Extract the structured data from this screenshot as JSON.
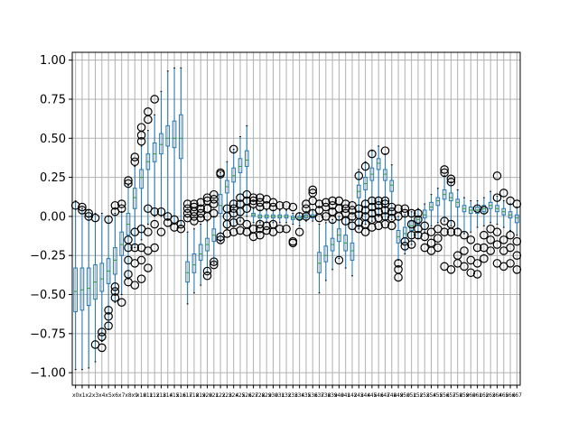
{
  "chart_data": {
    "type": "box",
    "title": "",
    "xlabel": "",
    "ylabel": "",
    "ylim": [
      -1.08,
      1.05
    ],
    "y_ticks": [
      -1.0,
      -0.75,
      -0.5,
      -0.25,
      0.0,
      0.25,
      0.5,
      0.75,
      1.0
    ],
    "y_tick_labels": [
      "−1.00",
      "−0.75",
      "−0.50",
      "−0.25",
      "0.00",
      "0.25",
      "0.50",
      "0.75",
      "1.00"
    ],
    "grid": true,
    "box_color": "#1f77b4",
    "median_color": "#2ca02c",
    "flier_color": "#000000",
    "categories": [
      "x0",
      "x1",
      "x2",
      "x3",
      "x4",
      "x5",
      "x6",
      "x7",
      "x8",
      "x9",
      "x10",
      "x11",
      "x12",
      "x13",
      "x14",
      "x15",
      "x16",
      "x17",
      "x18",
      "x19",
      "x20",
      "x21",
      "x22",
      "x23",
      "x24",
      "x25",
      "x26",
      "x27",
      "x28",
      "x29",
      "x30",
      "x31",
      "x32",
      "x33",
      "x34",
      "x35",
      "x36",
      "x37",
      "x38",
      "x39",
      "x40",
      "x41",
      "x42",
      "x43",
      "x44",
      "x45",
      "x46",
      "x47",
      "x48",
      "x49",
      "x50",
      "x51",
      "x52",
      "x53",
      "x54",
      "x55",
      "x56",
      "x57",
      "x58",
      "x59",
      "x60",
      "x61",
      "x62",
      "x63",
      "x64",
      "x65",
      "x66",
      "x67"
    ],
    "boxes": [
      {
        "whislo": -0.98,
        "q1": -0.61,
        "med": -0.48,
        "q3": -0.33,
        "whishi": 0.1
      },
      {
        "whislo": -0.98,
        "q1": -0.6,
        "med": -0.47,
        "q3": -0.33,
        "whishi": 0.05
      },
      {
        "whislo": -0.97,
        "q1": -0.57,
        "med": -0.46,
        "q3": -0.33,
        "whishi": 0.04
      },
      {
        "whislo": -0.93,
        "q1": -0.53,
        "med": -0.42,
        "q3": -0.31,
        "whishi": 0.02
      },
      {
        "whislo": -0.8,
        "q1": -0.48,
        "med": -0.4,
        "q3": -0.3,
        "whishi": 0.02
      },
      {
        "whislo": -0.72,
        "q1": -0.43,
        "med": -0.35,
        "q3": -0.27,
        "whishi": 0.0
      },
      {
        "whislo": -0.55,
        "q1": -0.37,
        "med": -0.28,
        "q3": -0.2,
        "whishi": 0.02
      },
      {
        "whislo": -0.5,
        "q1": -0.25,
        "med": -0.18,
        "q3": -0.1,
        "whishi": 0.03
      },
      {
        "whislo": -0.4,
        "q1": -0.12,
        "med": -0.05,
        "q3": 0.02,
        "whishi": 0.2
      },
      {
        "whislo": -0.2,
        "q1": 0.05,
        "med": 0.12,
        "q3": 0.18,
        "whishi": 0.32
      },
      {
        "whislo": -0.15,
        "q1": 0.18,
        "med": 0.25,
        "q3": 0.3,
        "whishi": 0.45
      },
      {
        "whislo": -0.05,
        "q1": 0.3,
        "med": 0.35,
        "q3": 0.4,
        "whishi": 0.55
      },
      {
        "whislo": 0.0,
        "q1": 0.35,
        "med": 0.4,
        "q3": 0.47,
        "whishi": 0.65
      },
      {
        "whislo": 0.0,
        "q1": 0.4,
        "med": 0.46,
        "q3": 0.53,
        "whishi": 0.8
      },
      {
        "whislo": -0.02,
        "q1": 0.45,
        "med": 0.5,
        "q3": 0.58,
        "whishi": 0.93
      },
      {
        "whislo": -0.05,
        "q1": 0.44,
        "med": 0.5,
        "q3": 0.61,
        "whishi": 0.95
      },
      {
        "whislo": -0.06,
        "q1": 0.37,
        "med": 0.5,
        "q3": 0.65,
        "whishi": 0.95
      },
      {
        "whislo": -0.56,
        "q1": -0.42,
        "med": -0.36,
        "q3": -0.29,
        "whishi": -0.1
      },
      {
        "whislo": -0.49,
        "q1": -0.36,
        "med": -0.31,
        "q3": -0.24,
        "whishi": -0.08
      },
      {
        "whislo": -0.44,
        "q1": -0.28,
        "med": -0.24,
        "q3": -0.18,
        "whishi": -0.05
      },
      {
        "whislo": -0.36,
        "q1": -0.22,
        "med": -0.18,
        "q3": -0.14,
        "whishi": -0.03
      },
      {
        "whislo": -0.3,
        "q1": -0.16,
        "med": -0.12,
        "q3": -0.08,
        "whishi": 0.0
      },
      {
        "whislo": -0.16,
        "q1": 0.02,
        "med": 0.07,
        "q3": 0.14,
        "whishi": 0.28
      },
      {
        "whislo": -0.08,
        "q1": 0.15,
        "med": 0.19,
        "q3": 0.23,
        "whishi": 0.35
      },
      {
        "whislo": -0.06,
        "q1": 0.22,
        "med": 0.26,
        "q3": 0.31,
        "whishi": 0.43
      },
      {
        "whislo": -0.03,
        "q1": 0.28,
        "med": 0.32,
        "q3": 0.37,
        "whishi": 0.51
      },
      {
        "whislo": 0.0,
        "q1": 0.32,
        "med": 0.36,
        "q3": 0.42,
        "whishi": 0.58
      },
      {
        "whislo": -0.04,
        "q1": 0.0,
        "med": 0.01,
        "q3": 0.02,
        "whishi": 0.05
      },
      {
        "whislo": -0.04,
        "q1": -0.01,
        "med": 0.0,
        "q3": 0.01,
        "whishi": 0.04
      },
      {
        "whislo": -0.04,
        "q1": -0.01,
        "med": 0.0,
        "q3": 0.01,
        "whishi": 0.04
      },
      {
        "whislo": -0.04,
        "q1": -0.01,
        "med": 0.0,
        "q3": 0.01,
        "whishi": 0.04
      },
      {
        "whislo": -0.04,
        "q1": -0.01,
        "med": 0.0,
        "q3": 0.01,
        "whishi": 0.04
      },
      {
        "whislo": -0.04,
        "q1": -0.01,
        "med": 0.0,
        "q3": 0.01,
        "whishi": 0.04
      },
      {
        "whislo": -0.05,
        "q1": -0.02,
        "med": -0.01,
        "q3": 0.0,
        "whishi": 0.02
      },
      {
        "whislo": -0.06,
        "q1": -0.02,
        "med": -0.01,
        "q3": 0.0,
        "whishi": 0.02
      },
      {
        "whislo": -0.03,
        "q1": -0.01,
        "med": 0.0,
        "q3": 0.01,
        "whishi": 0.03
      },
      {
        "whislo": -0.03,
        "q1": -0.01,
        "med": 0.0,
        "q3": 0.01,
        "whishi": 0.04
      },
      {
        "whislo": -0.49,
        "q1": -0.36,
        "med": -0.3,
        "q3": -0.23,
        "whishi": -0.05
      },
      {
        "whislo": -0.41,
        "q1": -0.29,
        "med": -0.25,
        "q3": -0.19,
        "whishi": -0.04
      },
      {
        "whislo": -0.34,
        "q1": -0.22,
        "med": -0.18,
        "q3": -0.14,
        "whishi": -0.02
      },
      {
        "whislo": -0.27,
        "q1": -0.16,
        "med": -0.12,
        "q3": -0.08,
        "whishi": 0.0
      },
      {
        "whislo": -0.33,
        "q1": -0.22,
        "med": -0.17,
        "q3": -0.12,
        "whishi": 0.0
      },
      {
        "whislo": -0.38,
        "q1": -0.28,
        "med": -0.22,
        "q3": -0.17,
        "whishi": -0.02
      },
      {
        "whislo": -0.08,
        "q1": 0.12,
        "med": 0.16,
        "q3": 0.2,
        "whishi": 0.3
      },
      {
        "whislo": -0.05,
        "q1": 0.17,
        "med": 0.21,
        "q3": 0.25,
        "whishi": 0.35
      },
      {
        "whislo": -0.03,
        "q1": 0.23,
        "med": 0.27,
        "q3": 0.31,
        "whishi": 0.42
      },
      {
        "whislo": 0.0,
        "q1": 0.3,
        "med": 0.34,
        "q3": 0.37,
        "whishi": 0.45
      },
      {
        "whislo": -0.02,
        "q1": 0.23,
        "med": 0.27,
        "q3": 0.3,
        "whishi": 0.4
      },
      {
        "whislo": -0.02,
        "q1": 0.16,
        "med": 0.2,
        "q3": 0.23,
        "whishi": 0.33
      },
      {
        "whislo": -0.28,
        "q1": -0.17,
        "med": -0.13,
        "q3": -0.09,
        "whishi": 0.0
      },
      {
        "whislo": -0.24,
        "q1": -0.14,
        "med": -0.11,
        "q3": -0.07,
        "whishi": 0.01
      },
      {
        "whislo": -0.18,
        "q1": -0.09,
        "med": -0.06,
        "q3": -0.03,
        "whishi": 0.03
      },
      {
        "whislo": -0.14,
        "q1": -0.05,
        "med": -0.02,
        "q3": 0.0,
        "whishi": 0.05
      },
      {
        "whislo": -0.1,
        "q1": -0.01,
        "med": 0.01,
        "q3": 0.04,
        "whishi": 0.08
      },
      {
        "whislo": -0.06,
        "q1": 0.04,
        "med": 0.06,
        "q3": 0.09,
        "whishi": 0.14
      },
      {
        "whislo": -0.04,
        "q1": 0.07,
        "med": 0.1,
        "q3": 0.12,
        "whishi": 0.18
      },
      {
        "whislo": -0.03,
        "q1": 0.11,
        "med": 0.14,
        "q3": 0.17,
        "whishi": 0.26
      },
      {
        "whislo": -0.06,
        "q1": 0.1,
        "med": 0.12,
        "q3": 0.15,
        "whishi": 0.22
      },
      {
        "whislo": -0.08,
        "q1": 0.06,
        "med": 0.09,
        "q3": 0.11,
        "whishi": 0.17
      },
      {
        "whislo": -0.11,
        "q1": 0.03,
        "med": 0.05,
        "q3": 0.07,
        "whishi": 0.12
      },
      {
        "whislo": -0.1,
        "q1": 0.02,
        "med": 0.04,
        "q3": 0.06,
        "whishi": 0.1
      },
      {
        "whislo": -0.07,
        "q1": 0.02,
        "med": 0.04,
        "q3": 0.06,
        "whishi": 0.1
      },
      {
        "whislo": -0.06,
        "q1": 0.03,
        "med": 0.05,
        "q3": 0.07,
        "whishi": 0.12
      },
      {
        "whislo": -0.04,
        "q1": 0.05,
        "med": 0.07,
        "q3": 0.09,
        "whishi": 0.16
      },
      {
        "whislo": -0.05,
        "q1": 0.03,
        "med": 0.05,
        "q3": 0.07,
        "whishi": 0.13
      },
      {
        "whislo": -0.07,
        "q1": 0.01,
        "med": 0.03,
        "q3": 0.05,
        "whishi": 0.1
      },
      {
        "whislo": -0.09,
        "q1": -0.01,
        "med": 0.01,
        "q3": 0.03,
        "whishi": 0.08
      },
      {
        "whislo": -0.12,
        "q1": -0.04,
        "med": -0.01,
        "q3": 0.01,
        "whishi": 0.06
      }
    ],
    "fliers": [
      [
        0.07
      ],
      [
        0.06,
        0.04
      ],
      [
        0.02,
        0.0
      ],
      [
        -0.01,
        -0.82
      ],
      [
        -0.77,
        -0.84,
        -0.74
      ],
      [
        -0.6,
        -0.64,
        -0.7,
        -0.02
      ],
      [
        -0.45,
        -0.52,
        -0.48,
        0.03,
        0.07
      ],
      [
        0.05,
        0.08,
        -0.55
      ],
      [
        -0.42,
        -0.37,
        -0.28,
        -0.2,
        -0.15,
        0.21,
        0.23
      ],
      [
        -0.44,
        -0.3,
        -0.2,
        -0.1,
        0.35,
        0.38
      ],
      [
        -0.4,
        -0.28,
        -0.2,
        -0.08,
        0.48,
        0.52,
        0.57
      ],
      [
        -0.33,
        -0.22,
        -0.1,
        0.05,
        0.62,
        0.67
      ],
      [
        -0.2,
        -0.05,
        0.03,
        0.75
      ],
      [
        -0.1,
        0.03
      ],
      [
        -0.04,
        0.0
      ],
      [
        -0.07,
        -0.02
      ],
      [
        -0.08,
        -0.05
      ],
      [
        -0.01,
        0.02,
        0.05,
        0.08
      ],
      [
        -0.03,
        0.0,
        0.03,
        0.06,
        0.08
      ],
      [
        -0.01,
        0.02,
        0.05,
        0.09
      ],
      [
        -0.38,
        -0.35,
        0.0,
        0.05,
        0.1,
        0.12
      ],
      [
        -0.31,
        -0.29,
        0.02,
        0.08,
        0.11,
        0.14
      ],
      [
        -0.15,
        -0.13,
        0.27,
        0.28
      ],
      [
        -0.11,
        -0.05,
        0.0,
        0.05
      ],
      [
        -0.1,
        -0.04,
        0.02,
        0.05,
        0.08,
        0.43
      ],
      [
        -0.09,
        -0.03,
        0.03,
        0.08,
        0.12
      ],
      [
        -0.1,
        -0.05,
        0.05,
        0.1,
        0.14
      ],
      [
        -0.13,
        -0.08,
        0.08,
        0.1,
        0.12
      ],
      [
        -0.12,
        -0.08,
        -0.05,
        0.06,
        0.09,
        0.12
      ],
      [
        -0.09,
        -0.06,
        0.07,
        0.11
      ],
      [
        -0.1,
        -0.05,
        0.06,
        0.09
      ],
      [
        -0.08,
        0.07
      ],
      [
        -0.08,
        0.07
      ],
      [
        -0.17,
        -0.16,
        0.06
      ],
      [
        -0.1,
        0.0
      ],
      [
        0.0,
        0.05,
        0.08
      ],
      [
        0.02,
        0.1,
        0.15,
        0.17
      ],
      [
        -0.01,
        0.04,
        0.08
      ],
      [
        0.0,
        0.06,
        0.09
      ],
      [
        -0.02,
        0.03,
        0.07,
        0.1
      ],
      [
        -0.28,
        0.0,
        0.05,
        0.1
      ],
      [
        -0.03,
        0.02,
        0.05,
        0.08
      ],
      [
        -0.06,
        0.0,
        0.04,
        0.07
      ],
      [
        -0.08,
        -0.04,
        0.01,
        0.05,
        0.26
      ],
      [
        -0.1,
        -0.05,
        0.0,
        0.04,
        0.08,
        0.32
      ],
      [
        -0.07,
        -0.02,
        0.02,
        0.06,
        0.1,
        0.4
      ],
      [
        -0.06,
        -0.01,
        0.03,
        0.07,
        0.1
      ],
      [
        -0.05,
        0.0,
        0.04,
        0.08,
        0.1,
        0.42
      ],
      [
        -0.06,
        -0.01,
        0.03,
        0.06
      ],
      [
        -0.39,
        -0.34,
        -0.3,
        0.0,
        0.05
      ],
      [
        -0.19,
        -0.16,
        0.02,
        0.05
      ],
      [
        -0.18,
        -0.12,
        -0.05,
        0.02
      ],
      [
        -0.12,
        -0.08,
        -0.02,
        0.02
      ],
      [
        -0.2,
        -0.13,
        -0.06
      ],
      [
        -0.22,
        -0.17,
        -0.1
      ],
      [
        -0.2,
        -0.14,
        -0.08
      ],
      [
        -0.32,
        -0.1,
        -0.03,
        0.3,
        0.28
      ],
      [
        -0.34,
        -0.1,
        -0.05,
        0.22,
        0.24
      ],
      [
        -0.3,
        -0.25,
        -0.1
      ],
      [
        -0.32,
        -0.22,
        -0.12
      ],
      [
        -0.36,
        -0.28,
        -0.15
      ],
      [
        -0.37,
        -0.3,
        -0.2,
        0.05
      ],
      [
        -0.27,
        -0.2,
        -0.12,
        0.04
      ],
      [
        -0.22,
        -0.15,
        -0.08
      ],
      [
        -0.3,
        -0.18,
        -0.1,
        0.26,
        0.12
      ],
      [
        -0.32,
        -0.22,
        -0.15,
        0.15
      ],
      [
        -0.3,
        -0.2,
        -0.12,
        0.1
      ],
      [
        -0.34,
        -0.25,
        -0.16,
        0.08
      ]
    ]
  }
}
